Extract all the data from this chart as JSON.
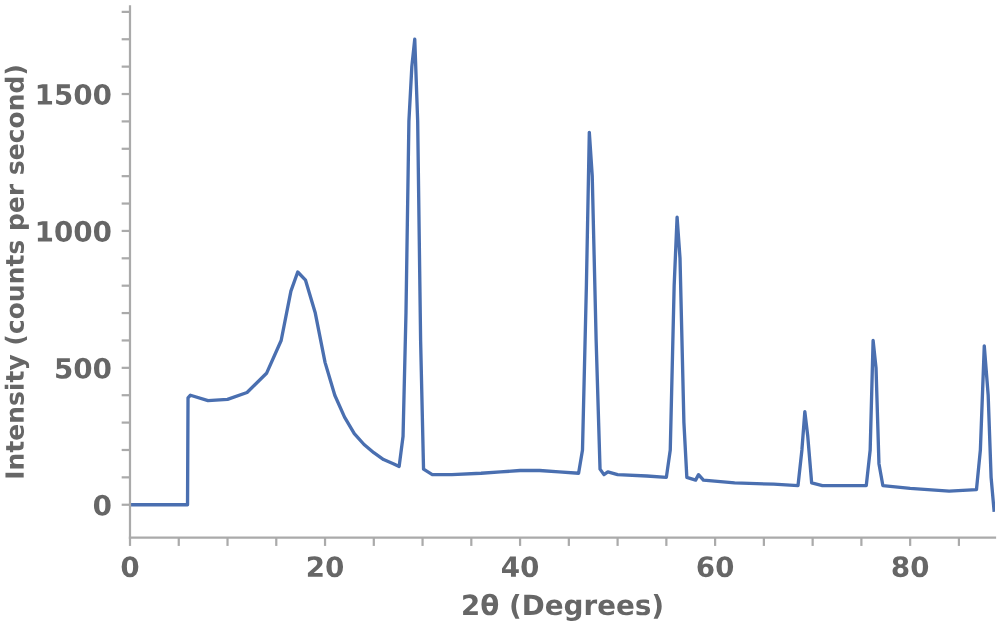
{
  "chart_data": {
    "type": "line",
    "xlabel": "2θ (Degrees)",
    "ylabel": "Intensity (counts per second)",
    "xlim": [
      0,
      88.7
    ],
    "ylim": [
      -120,
      1820
    ],
    "xticks": [
      0,
      {
        "value": 5,
        "label": null
      },
      {
        "value": 10,
        "label": null
      },
      {
        "value": 15,
        "label": null
      },
      20,
      {
        "value": 25,
        "label": null
      },
      {
        "value": 30,
        "label": null
      },
      {
        "value": 35,
        "label": null
      },
      40,
      {
        "value": 45,
        "label": null
      },
      {
        "value": 50,
        "label": null
      },
      {
        "value": 55,
        "label": null
      },
      60,
      {
        "value": 65,
        "label": null
      },
      {
        "value": 70,
        "label": null
      },
      {
        "value": 75,
        "label": null
      },
      80,
      {
        "value": 85,
        "label": null
      }
    ],
    "yticks": [
      0,
      {
        "value": 100,
        "label": null
      },
      {
        "value": 200,
        "label": null
      },
      {
        "value": 300,
        "label": null
      },
      {
        "value": 400,
        "label": null
      },
      500,
      {
        "value": 600,
        "label": null
      },
      {
        "value": 700,
        "label": null
      },
      {
        "value": 800,
        "label": null
      },
      {
        "value": 900,
        "label": null
      },
      1000,
      {
        "value": 1100,
        "label": null
      },
      {
        "value": 1200,
        "label": null
      },
      {
        "value": 1300,
        "label": null
      },
      {
        "value": 1400,
        "label": null
      },
      1500,
      {
        "value": 1600,
        "label": null
      },
      {
        "value": 1700,
        "label": null
      },
      {
        "value": 1800,
        "label": null
      }
    ],
    "grid": false,
    "legend": false,
    "line_style": "solid",
    "series": [
      {
        "color": "#4a6fb0",
        "x": [
          0,
          5.9,
          5.95,
          6.2,
          8,
          10,
          12,
          14,
          15.5,
          16.5,
          17.2,
          18,
          19,
          20,
          21,
          22,
          23,
          24,
          25,
          26,
          27,
          27.6,
          28,
          28.3,
          28.6,
          28.9,
          29.2,
          29.5,
          29.8,
          30.1,
          31,
          33,
          36,
          38,
          40,
          42,
          44,
          46,
          46.4,
          46.8,
          47.1,
          47.4,
          47.8,
          48.2,
          48.6,
          49,
          50,
          53,
          55,
          55.4,
          55.8,
          56.1,
          56.4,
          56.8,
          57.1,
          58,
          58.3,
          58.8,
          62,
          66,
          68.5,
          68.9,
          69.2,
          69.5,
          69.9,
          71,
          73,
          75.5,
          75.9,
          76.2,
          76.5,
          76.8,
          77.2,
          80,
          84,
          86.8,
          87.2,
          87.6,
          88,
          88.3,
          88.6
        ],
        "values": [
          0,
          0,
          390,
          400,
          380,
          385,
          410,
          480,
          600,
          780,
          850,
          820,
          700,
          520,
          400,
          320,
          260,
          220,
          190,
          165,
          150,
          140,
          250,
          700,
          1400,
          1600,
          1700,
          1400,
          600,
          130,
          110,
          110,
          115,
          120,
          125,
          125,
          120,
          115,
          200,
          800,
          1360,
          1200,
          600,
          130,
          110,
          120,
          110,
          105,
          100,
          200,
          800,
          1050,
          900,
          300,
          100,
          90,
          110,
          90,
          80,
          75,
          70,
          200,
          340,
          250,
          80,
          70,
          70,
          70,
          200,
          600,
          500,
          150,
          70,
          60,
          50,
          55,
          200,
          580,
          400,
          100,
          -20
        ]
      }
    ]
  }
}
